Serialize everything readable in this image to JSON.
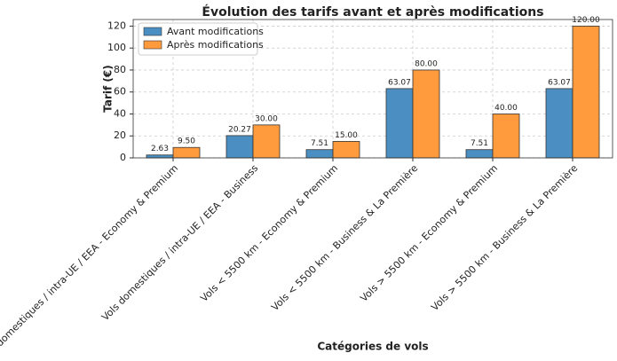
{
  "chart_data": {
    "type": "bar",
    "title": "Évolution des tarifs avant et après modifications",
    "x_label": "Catégories de vols",
    "y_label": "Tarif (€)",
    "categories": [
      "Vols domestiques / intra-UE / EEA - Economy & Premium",
      "Vols domestiques / intra-UE / EEA - Business",
      "Vols < 5500 km - Economy & Premium",
      "Vols < 5500 km - Business & La Première",
      "Vols > 5500 km - Economy & Premium",
      "Vols > 5500 km - Business & La Première"
    ],
    "series": [
      {
        "name": "Avant modifications",
        "color": "#4b8fc2",
        "values": [
          2.63,
          20.27,
          7.51,
          63.07,
          7.51,
          63.07
        ],
        "value_labels": [
          "2.63",
          "20.27",
          "7.51",
          "63.07",
          "7.51",
          "63.07"
        ]
      },
      {
        "name": "Après modifications",
        "color": "#ff9a3d",
        "values": [
          9.5,
          30,
          15,
          80,
          40,
          120
        ],
        "value_labels": [
          "9.50",
          "30.00",
          "15.00",
          "80.00",
          "40.00",
          "120.00"
        ]
      }
    ],
    "ylim": [
      0,
      126
    ],
    "yticks": [
      0,
      20,
      40,
      60,
      80,
      100,
      120
    ],
    "grid": true,
    "legend": "upper-left"
  }
}
